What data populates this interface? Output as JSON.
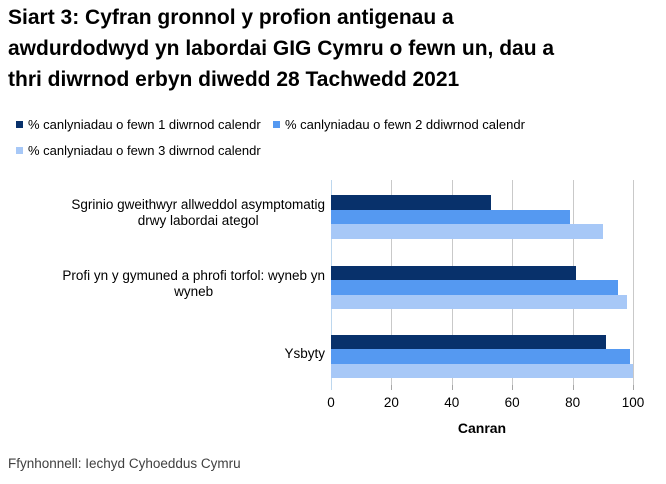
{
  "title": {
    "lines": [
      "Siart 3: Cyfran gronnol y profion antigenau a",
      "awdurdodwyd yn labordai GIG Cymru o fewn un, dau a",
      "thri diwrnod erbyn diwedd 28 Tachwedd 2021"
    ]
  },
  "legend": {
    "items": [
      {
        "label": "% canlyniadau o fewn 1 diwrnod calendr",
        "color": "#08316b"
      },
      {
        "label": "% canlyniadau o fewn 2 ddiwrnod calendr",
        "color": "#5599f1"
      },
      {
        "label": "% canlyniadau o fewn 3 diwrnod calendr",
        "color": "#a7c8f7"
      }
    ]
  },
  "chart_data": {
    "type": "bar",
    "orientation": "horizontal",
    "title": "Siart 3: Cyfran gronnol y profion antigenau a awdurdodwyd yn labordai GIG Cymru o fewn un, dau a thri diwrnod erbyn diwedd 28 Tachwedd 2021",
    "categories": [
      "Sgrinio gweithwyr allweddol asymptomatig drwy labordai ategol",
      "Profi yn y gymuned a phrofi torfol: wyneb yn wyneb",
      "Ysbyty"
    ],
    "category_label_lines": [
      [
        "Sgrinio gweithwyr allweddol asymptomatig",
        "drwy labordai ategol"
      ],
      [
        "Profi yn y gymuned a phrofi torfol: wyneb yn",
        "wyneb"
      ],
      [
        "Ysbyty"
      ]
    ],
    "series": [
      {
        "name": "% canlyniadau o fewn 1 diwrnod calendr",
        "color": "#08316b",
        "values": [
          53,
          81,
          91
        ]
      },
      {
        "name": "% canlyniadau o fewn 2 ddiwrnod calendr",
        "color": "#5599f1",
        "values": [
          79,
          95,
          99
        ]
      },
      {
        "name": "% canlyniadau o fewn 3 diwrnod calendr",
        "color": "#a7c8f7",
        "values": [
          90,
          98,
          100
        ]
      }
    ],
    "xlabel": "Canran",
    "ylabel": "",
    "xlim": [
      0,
      100
    ],
    "xticks": [
      0,
      20,
      40,
      60,
      80,
      100
    ],
    "grid": "vertical",
    "legend_position": "top",
    "axis_line_color": "#bdd7ee",
    "gridline_color": "#c9c9c9"
  },
  "source": "Ffynhonnell: Iechyd Cyhoeddus Cymru"
}
